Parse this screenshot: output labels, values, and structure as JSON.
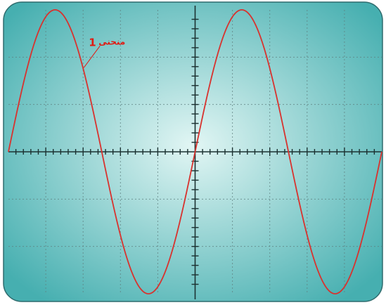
{
  "chart_data": {
    "type": "line",
    "title": "",
    "xlabel": "",
    "ylabel": "",
    "grid": true,
    "xlim": [
      -5,
      5
    ],
    "ylim": [
      -3,
      3
    ],
    "x_divisions": 10,
    "y_divisions": 6,
    "minor_ticks_per_division": 5,
    "series": [
      {
        "name": "",
        "function": "sine",
        "amplitude": 3,
        "period": 5,
        "phase_deg": 0,
        "sampled_points": {
          "x": [
            -5,
            -3.75,
            -2.5,
            -1.25,
            0,
            1.25,
            2.5,
            3.75,
            5
          ],
          "y": [
            0,
            3,
            0,
            -3,
            0,
            3,
            0,
            -3,
            0
          ]
        }
      }
    ],
    "annotation": {
      "text_number": "1",
      "text_word": "منحنى",
      "points_to_x": -3.0
    }
  },
  "colors": {
    "screen_edge": "#46afb0",
    "screen_center": "#e2f6f4",
    "grid": "#5e7f7f",
    "axis": "#1c3232",
    "curve": "#d8322e",
    "label": "#e01a12",
    "frame": "#2f6c6e"
  }
}
